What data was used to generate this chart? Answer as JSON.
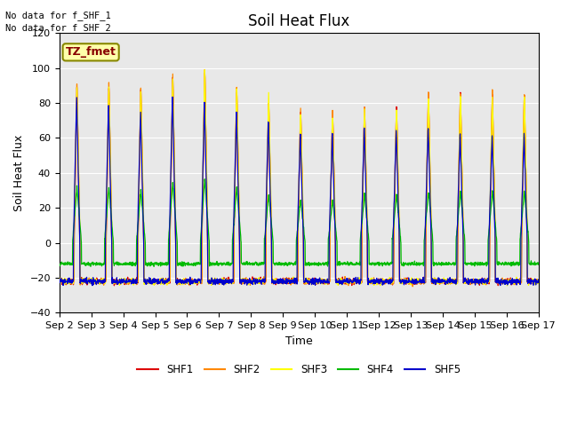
{
  "title": "Soil Heat Flux",
  "xlabel": "Time",
  "ylabel": "Soil Heat Flux",
  "ylim": [
    -40,
    120
  ],
  "yticks": [
    -40,
    -20,
    0,
    20,
    40,
    60,
    80,
    100,
    120
  ],
  "x_tick_labels": [
    "Sep 2",
    "Sep 3",
    "Sep 4",
    "Sep 5",
    "Sep 6",
    "Sep 7",
    "Sep 8",
    "Sep 9",
    "Sep 10",
    "Sep 11",
    "Sep 12",
    "Sep 13",
    "Sep 14",
    "Sep 15",
    "Sep 16",
    "Sep 17"
  ],
  "line_colors": {
    "SHF1": "#dd0000",
    "SHF2": "#ff8800",
    "SHF3": "#ffff00",
    "SHF4": "#00bb00",
    "SHF5": "#0000cc"
  },
  "annotation_nodata": [
    "No data for f_SHF_1",
    "No data for f_SHF_2"
  ],
  "tz_fmet_label": "TZ_fmet",
  "bg_color": "#e8e8e8",
  "title_fontsize": 12,
  "axis_fontsize": 9,
  "tick_fontsize": 8
}
